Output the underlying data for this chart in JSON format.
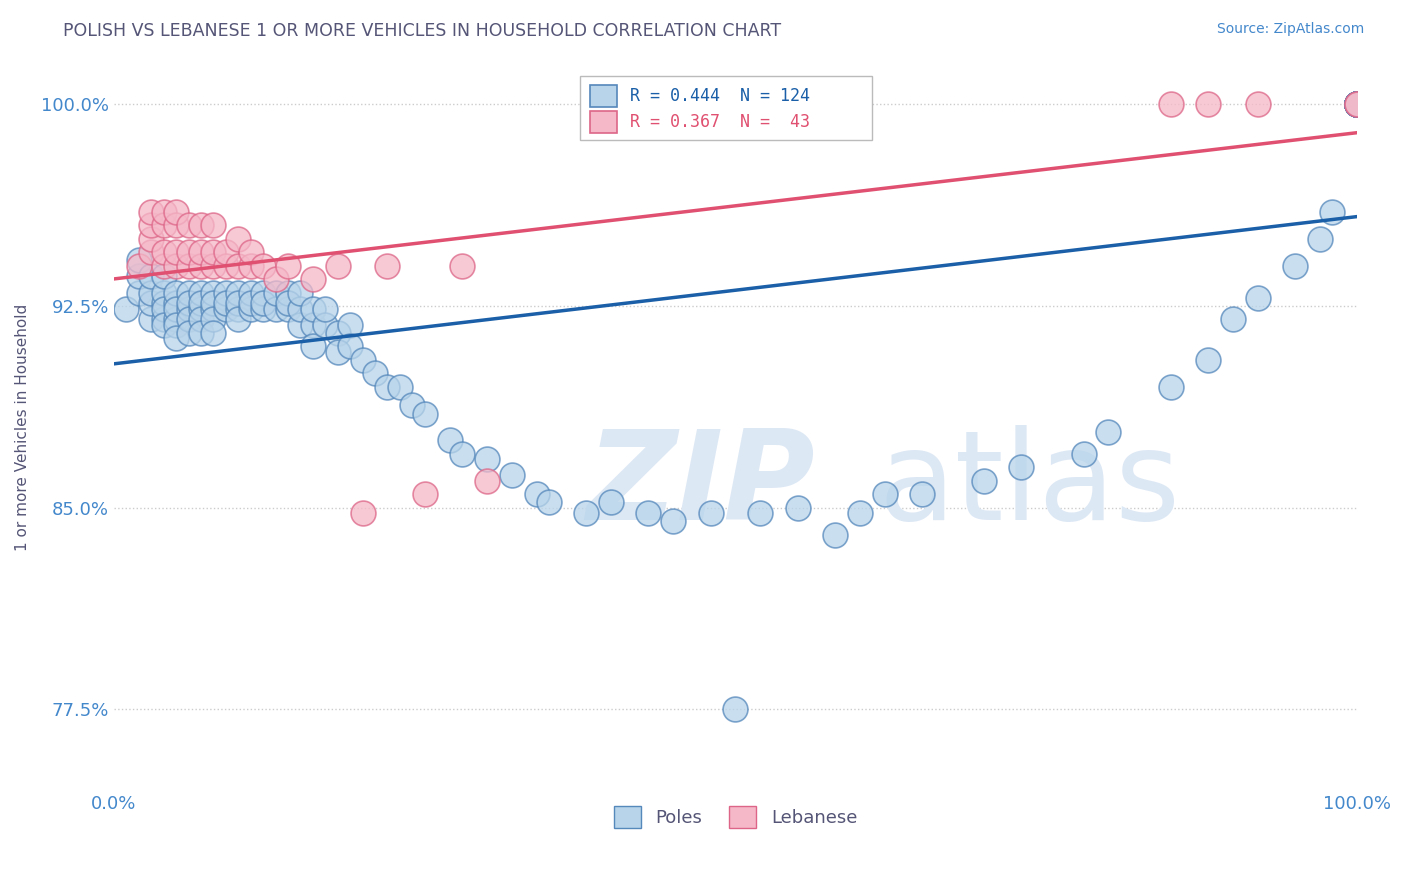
{
  "title": "POLISH VS LEBANESE 1 OR MORE VEHICLES IN HOUSEHOLD CORRELATION CHART",
  "source": "Source: ZipAtlas.com",
  "ylabel": "1 or more Vehicles in Household",
  "poles_R": 0.444,
  "poles_N": 124,
  "lebanese_R": 0.367,
  "lebanese_N": 43,
  "poles_color": "#b8d4ea",
  "poles_edge_color": "#5588bb",
  "lebanese_color": "#f5b8c8",
  "lebanese_edge_color": "#dd6688",
  "poles_line_color": "#1a5fa8",
  "lebanese_line_color": "#e05070",
  "background_color": "#ffffff",
  "grid_color": "#cccccc",
  "title_color": "#555577",
  "axis_color": "#4488cc",
  "watermark_color": "#dde8f5",
  "xlim": [
    0.0,
    1.0
  ],
  "ylim": [
    0.745,
    1.015
  ],
  "ytick_vals": [
    0.775,
    0.85,
    0.925,
    1.0
  ],
  "ytick_labels": [
    "77.5%",
    "85.0%",
    "92.5%",
    "100.0%"
  ],
  "poles_x": [
    0.01,
    0.02,
    0.02,
    0.02,
    0.03,
    0.03,
    0.03,
    0.03,
    0.04,
    0.04,
    0.04,
    0.04,
    0.04,
    0.04,
    0.05,
    0.05,
    0.05,
    0.05,
    0.05,
    0.05,
    0.06,
    0.06,
    0.06,
    0.06,
    0.06,
    0.07,
    0.07,
    0.07,
    0.07,
    0.07,
    0.08,
    0.08,
    0.08,
    0.08,
    0.08,
    0.09,
    0.09,
    0.09,
    0.1,
    0.1,
    0.1,
    0.1,
    0.11,
    0.11,
    0.11,
    0.12,
    0.12,
    0.12,
    0.13,
    0.13,
    0.14,
    0.14,
    0.14,
    0.15,
    0.15,
    0.15,
    0.16,
    0.16,
    0.16,
    0.17,
    0.17,
    0.18,
    0.18,
    0.19,
    0.19,
    0.2,
    0.21,
    0.22,
    0.23,
    0.24,
    0.25,
    0.27,
    0.28,
    0.3,
    0.32,
    0.34,
    0.35,
    0.38,
    0.4,
    0.43,
    0.45,
    0.48,
    0.5,
    0.52,
    0.55,
    0.58,
    0.6,
    0.62,
    0.65,
    0.7,
    0.73,
    0.78,
    0.8,
    0.85,
    0.88,
    0.9,
    0.92,
    0.95,
    0.97,
    0.98,
    1.0,
    1.0,
    1.0,
    1.0,
    1.0,
    1.0,
    1.0,
    1.0,
    1.0,
    1.0,
    1.0,
    1.0,
    1.0,
    1.0,
    1.0,
    1.0,
    1.0,
    1.0,
    1.0,
    1.0,
    1.0,
    1.0,
    1.0,
    1.0
  ],
  "poles_y": [
    0.924,
    0.93,
    0.936,
    0.942,
    0.92,
    0.926,
    0.93,
    0.936,
    0.92,
    0.926,
    0.93,
    0.936,
    0.924,
    0.918,
    0.92,
    0.926,
    0.93,
    0.924,
    0.918,
    0.913,
    0.924,
    0.93,
    0.926,
    0.92,
    0.915,
    0.924,
    0.93,
    0.926,
    0.92,
    0.915,
    0.924,
    0.93,
    0.926,
    0.92,
    0.915,
    0.924,
    0.93,
    0.926,
    0.924,
    0.93,
    0.926,
    0.92,
    0.924,
    0.93,
    0.926,
    0.924,
    0.93,
    0.926,
    0.924,
    0.93,
    0.924,
    0.93,
    0.926,
    0.918,
    0.924,
    0.93,
    0.918,
    0.924,
    0.91,
    0.918,
    0.924,
    0.915,
    0.908,
    0.918,
    0.91,
    0.905,
    0.9,
    0.895,
    0.895,
    0.888,
    0.885,
    0.875,
    0.87,
    0.868,
    0.862,
    0.855,
    0.852,
    0.848,
    0.852,
    0.848,
    0.845,
    0.848,
    0.775,
    0.848,
    0.85,
    0.84,
    0.848,
    0.855,
    0.855,
    0.86,
    0.865,
    0.87,
    0.878,
    0.895,
    0.905,
    0.92,
    0.928,
    0.94,
    0.95,
    0.96,
    1.0,
    1.0,
    1.0,
    1.0,
    1.0,
    1.0,
    1.0,
    1.0,
    1.0,
    1.0,
    1.0,
    1.0,
    1.0,
    1.0,
    1.0,
    1.0,
    1.0,
    1.0,
    1.0,
    1.0,
    1.0,
    1.0,
    1.0,
    1.0
  ],
  "leb_x": [
    0.02,
    0.03,
    0.03,
    0.03,
    0.03,
    0.04,
    0.04,
    0.04,
    0.04,
    0.05,
    0.05,
    0.05,
    0.05,
    0.06,
    0.06,
    0.06,
    0.07,
    0.07,
    0.07,
    0.08,
    0.08,
    0.08,
    0.09,
    0.09,
    0.1,
    0.1,
    0.11,
    0.11,
    0.12,
    0.13,
    0.14,
    0.16,
    0.18,
    0.2,
    0.22,
    0.25,
    0.28,
    0.3,
    0.85,
    0.88,
    0.92,
    1.0,
    1.0
  ],
  "leb_y": [
    0.94,
    0.945,
    0.95,
    0.955,
    0.96,
    0.94,
    0.945,
    0.955,
    0.96,
    0.94,
    0.945,
    0.955,
    0.96,
    0.94,
    0.945,
    0.955,
    0.94,
    0.945,
    0.955,
    0.94,
    0.945,
    0.955,
    0.94,
    0.945,
    0.94,
    0.95,
    0.94,
    0.945,
    0.94,
    0.935,
    0.94,
    0.935,
    0.94,
    0.848,
    0.94,
    0.855,
    0.94,
    0.86,
    1.0,
    1.0,
    1.0,
    1.0,
    1.0
  ]
}
